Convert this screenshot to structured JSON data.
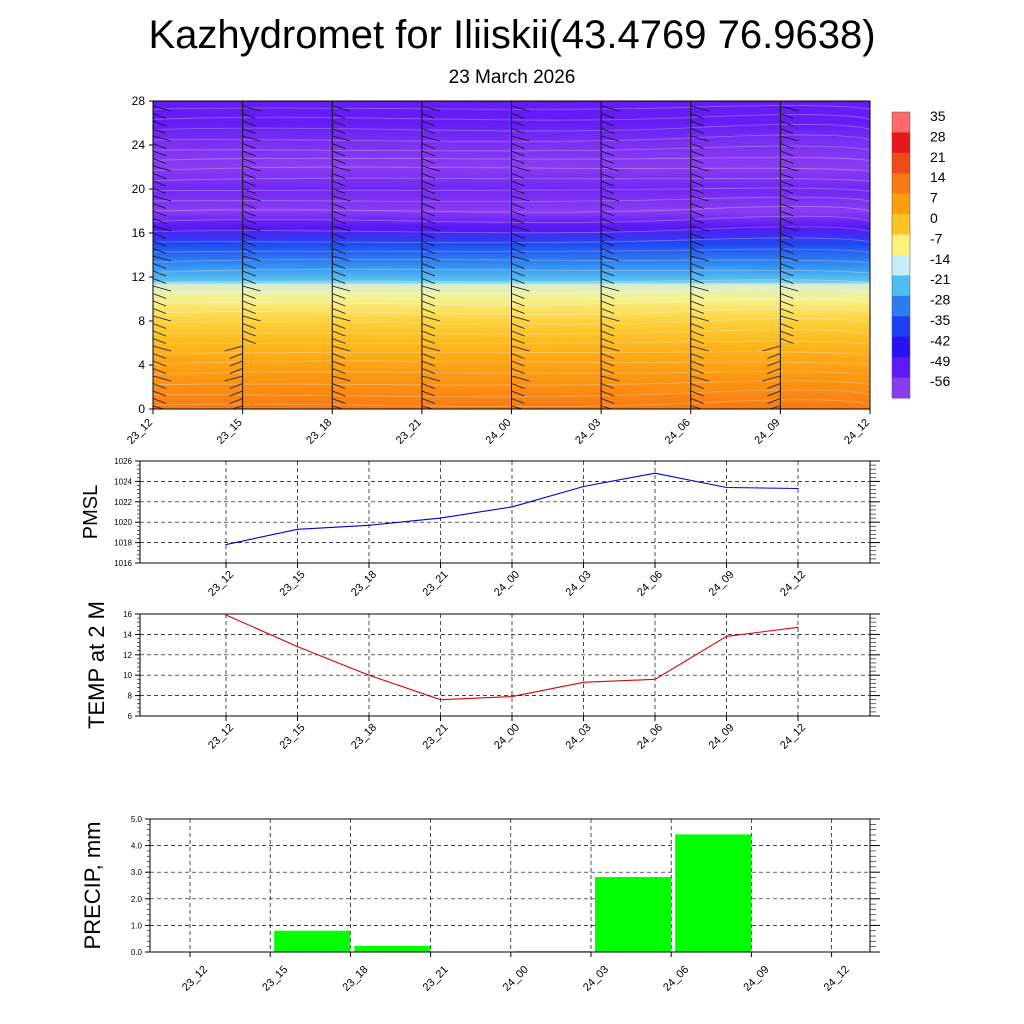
{
  "title": "Kazhydromet for Iliiskii(43.4769 76.9638)",
  "subtitle": "23 March 2026",
  "chart_data": [
    {
      "type": "heatmap",
      "x_ticks": [
        "23_12",
        "23_15",
        "23_18",
        "23_21",
        "24_00",
        "24_03",
        "24_06",
        "24_09",
        "24_12"
      ],
      "y_ticks": [
        "0",
        "4",
        "8",
        "12",
        "16",
        "20",
        "24",
        "28"
      ],
      "ylim": [
        0,
        28
      ],
      "colorbar": {
        "labels": [
          "35",
          "28",
          "21",
          "14",
          "7",
          "0",
          "-7",
          "-14",
          "-21",
          "-28",
          "-35",
          "-42",
          "-49",
          "-56"
        ],
        "colors": [
          "#ff6b6b",
          "#e6191a",
          "#ef4a1a",
          "#f87a14",
          "#fb9e12",
          "#fcc424",
          "#fff27a",
          "#c7ecf7",
          "#4dbfee",
          "#2a7df0",
          "#1f3ff2",
          "#2a10f5",
          "#5e19f5",
          "#8a3cf2"
        ]
      },
      "temperature_profile": [
        {
          "h": 0,
          "t": 14
        },
        {
          "h": 2,
          "t": 10
        },
        {
          "h": 4,
          "t": 6
        },
        {
          "h": 6,
          "t": 2
        },
        {
          "h": 8,
          "t": -2
        },
        {
          "h": 10,
          "t": -8
        },
        {
          "h": 11.3,
          "t": -12
        },
        {
          "h": 11.6,
          "t": -20
        },
        {
          "h": 13,
          "t": -26
        },
        {
          "h": 15,
          "t": -34
        },
        {
          "h": 16.5,
          "t": -48
        },
        {
          "h": 18,
          "t": -56
        },
        {
          "h": 20,
          "t": -52
        },
        {
          "h": 22,
          "t": -58
        },
        {
          "h": 24,
          "t": -54
        },
        {
          "h": 26,
          "t": -50
        },
        {
          "h": 28,
          "t": -50
        }
      ]
    },
    {
      "type": "line",
      "ylabel": "PMSL",
      "x": [
        "23_12",
        "23_15",
        "23_18",
        "23_21",
        "24_00",
        "24_03",
        "24_06",
        "24_09",
        "24_12"
      ],
      "series": [
        {
          "values": [
            1017.8,
            1019.3,
            1019.7,
            1020.4,
            1021.5,
            1023.5,
            1024.8,
            1023.4,
            1023.3
          ],
          "color": "#0000cc"
        }
      ],
      "ylim": [
        1016,
        1026
      ],
      "y_ticks": [
        "1016",
        "1018",
        "1020",
        "1022",
        "1024",
        "1026"
      ],
      "grid": true
    },
    {
      "type": "line",
      "ylabel": "TEMP at 2 M",
      "x": [
        "23_12",
        "23_15",
        "23_18",
        "23_21",
        "24_00",
        "24_03",
        "24_06",
        "24_09",
        "24_12"
      ],
      "series": [
        {
          "values": [
            15.9,
            12.8,
            10.0,
            7.6,
            7.9,
            9.3,
            9.6,
            13.8,
            14.7
          ],
          "color": "#dd0000"
        }
      ],
      "ylim": [
        6,
        16
      ],
      "y_ticks": [
        "6",
        "8",
        "10",
        "12",
        "14",
        "16"
      ],
      "grid": true
    },
    {
      "type": "bar",
      "ylabel": "PRECIP, mm",
      "categories": [
        "23_12",
        "23_15",
        "23_18",
        "23_21",
        "24_00",
        "24_03",
        "24_06",
        "24_09",
        "24_12"
      ],
      "values": [
        0,
        0.8,
        0.23,
        0,
        0.03,
        2.82,
        4.42,
        0,
        0
      ],
      "color": "#00ff00",
      "ylim": [
        0,
        5
      ],
      "y_ticks": [
        "0.0",
        "1.0",
        "2.0",
        "3.0",
        "4.0",
        "5.0"
      ],
      "grid": true
    }
  ]
}
